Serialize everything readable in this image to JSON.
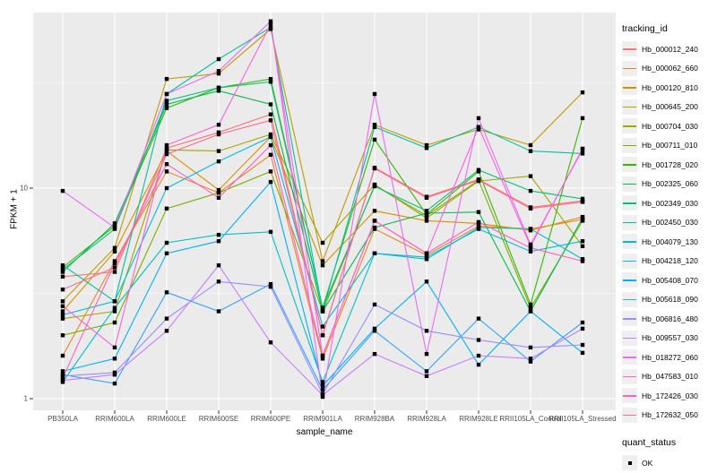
{
  "figure": {
    "background": "#FFFFFF",
    "panel_background": "#EBEBEB",
    "grid_color": "#FFFFFF",
    "tick_color": "#333333",
    "tick_text_color": "#4D4D4D",
    "point_color": "#000000"
  },
  "axes": {
    "x_title": "sample_name",
    "y_title": "FPKM + 1"
  },
  "legend": {
    "color_title": "tracking_id",
    "shape_title": "quant_status",
    "shape_items": [
      {
        "label": "OK"
      }
    ]
  },
  "chart_data": {
    "type": "line",
    "title": "",
    "xlabel": "sample_name",
    "ylabel": "FPKM + 1",
    "y_scale": "log10",
    "grid": true,
    "legend_position": "right",
    "y_ticks": [
      1,
      10
    ],
    "y_minor_ticks": [
      3.162,
      31.62
    ],
    "ylim": [
      0.83,
      68
    ],
    "categories": [
      "PB350LA",
      "RRIM600LA",
      "RRIM600LE",
      "RRIM600SE",
      "RRIM600PE",
      "RRIM901LA",
      "RRIM928BA",
      "RRIM928LA",
      "RRIM928LE",
      "RRII105LA_Control",
      "RRII105LA_Stressed"
    ],
    "series": [
      {
        "name": "Hb_000012_240",
        "color": "#F8766D",
        "values": [
          3.8,
          4.0,
          15.5,
          18.4,
          22.4,
          2.0,
          12.5,
          9.1,
          11.0,
          8.1,
          8.7
        ]
      },
      {
        "name": "Hb_000062_660",
        "color": "#E88526",
        "values": [
          1.6,
          4.5,
          12.0,
          9.5,
          14.4,
          1.55,
          6.4,
          4.8,
          6.6,
          6.4,
          7.1
        ]
      },
      {
        "name": "Hb_000120_810",
        "color": "#D89000",
        "values": [
          2.6,
          5.0,
          15.0,
          9.8,
          17.5,
          4.3,
          7.8,
          7.0,
          6.8,
          6.3,
          7.3
        ]
      },
      {
        "name": "Hb_000645_200",
        "color": "#C09B00",
        "values": [
          2.9,
          5.2,
          33.0,
          35.0,
          57.0,
          4.5,
          20.0,
          16.0,
          19.0,
          16.0,
          28.5
        ]
      },
      {
        "name": "Hb_000704_030",
        "color": "#A3A500",
        "values": [
          2.4,
          2.6,
          15.2,
          15.0,
          18.0,
          5.5,
          10.4,
          7.2,
          10.8,
          11.4,
          5.3
        ]
      },
      {
        "name": "Hb_000711_010",
        "color": "#7CAE00",
        "values": [
          2.0,
          2.3,
          8.0,
          9.5,
          12.0,
          2.6,
          10.3,
          7.4,
          10.9,
          2.7,
          7.0
        ]
      },
      {
        "name": "Hb_001728_020",
        "color": "#39B600",
        "values": [
          4.2,
          6.6,
          24.0,
          30.0,
          33.0,
          2.7,
          17.0,
          7.5,
          12.0,
          2.8,
          21.5
        ]
      },
      {
        "name": "Hb_002325_060",
        "color": "#00BB4E",
        "values": [
          4.0,
          6.8,
          25.0,
          29.0,
          25.0,
          2.6,
          6.5,
          7.6,
          7.7,
          2.6,
          7.2
        ]
      },
      {
        "name": "Hb_002349_030",
        "color": "#00BF7D",
        "values": [
          4.1,
          6.4,
          26.0,
          30.0,
          32.0,
          2.7,
          10.2,
          7.8,
          12.2,
          9.7,
          8.9
        ]
      },
      {
        "name": "Hb_002450_030",
        "color": "#00C1A3",
        "values": [
          4.3,
          2.9,
          28.0,
          41.0,
          58.0,
          2.6,
          19.5,
          15.5,
          19.5,
          15.0,
          14.6
        ]
      },
      {
        "name": "Hb_004079_130",
        "color": "#00BFC4",
        "values": [
          1.2,
          2.7,
          5.5,
          6.0,
          6.2,
          1.2,
          4.9,
          4.6,
          6.5,
          6.4,
          4.6
        ]
      },
      {
        "name": "Hb_004218_120",
        "color": "#00BAE0",
        "values": [
          2.5,
          2.9,
          10.0,
          13.4,
          17.5,
          2.2,
          4.9,
          4.7,
          6.4,
          5.0,
          5.6
        ]
      },
      {
        "name": "Hb_005408_070",
        "color": "#00B0F6",
        "values": [
          1.35,
          1.55,
          4.9,
          5.6,
          10.7,
          1.15,
          2.15,
          3.6,
          1.45,
          2.6,
          1.65
        ]
      },
      {
        "name": "Hb_005618_090",
        "color": "#35A2FF",
        "values": [
          1.3,
          1.18,
          3.2,
          2.6,
          3.5,
          1.1,
          2.1,
          1.35,
          2.4,
          1.5,
          2.3
        ]
      },
      {
        "name": "Hb_006816_480",
        "color": "#9590FF",
        "values": [
          1.28,
          1.33,
          2.4,
          3.6,
          3.4,
          1.05,
          2.8,
          2.1,
          1.9,
          1.75,
          1.8
        ]
      },
      {
        "name": "Hb_009557_030",
        "color": "#C77CFF",
        "values": [
          1.22,
          1.3,
          2.1,
          4.3,
          1.85,
          1.04,
          1.63,
          1.28,
          1.6,
          1.55,
          2.15
        ]
      },
      {
        "name": "Hb_018272_060",
        "color": "#E76BF3",
        "values": [
          9.7,
          6.5,
          28.0,
          36.0,
          62.0,
          1.02,
          28.0,
          1.63,
          21.5,
          5.4,
          15.2
        ]
      },
      {
        "name": "Hb_047583_010",
        "color": "#FA62DB",
        "values": [
          2.75,
          1.75,
          16.0,
          20.0,
          60.0,
          1.6,
          7.0,
          4.9,
          19.5,
          5.3,
          15.4
        ]
      },
      {
        "name": "Hb_172426_030",
        "color": "#FF62BC",
        "values": [
          1.25,
          4.4,
          13.0,
          9.0,
          16.0,
          1.6,
          7.0,
          4.9,
          6.9,
          5.2,
          4.5
        ]
      },
      {
        "name": "Hb_172632_050",
        "color": "#FF6A98",
        "values": [
          3.3,
          4.2,
          14.5,
          18.0,
          21.0,
          2.0,
          12.4,
          9.0,
          10.9,
          8.0,
          8.6
        ]
      }
    ]
  }
}
